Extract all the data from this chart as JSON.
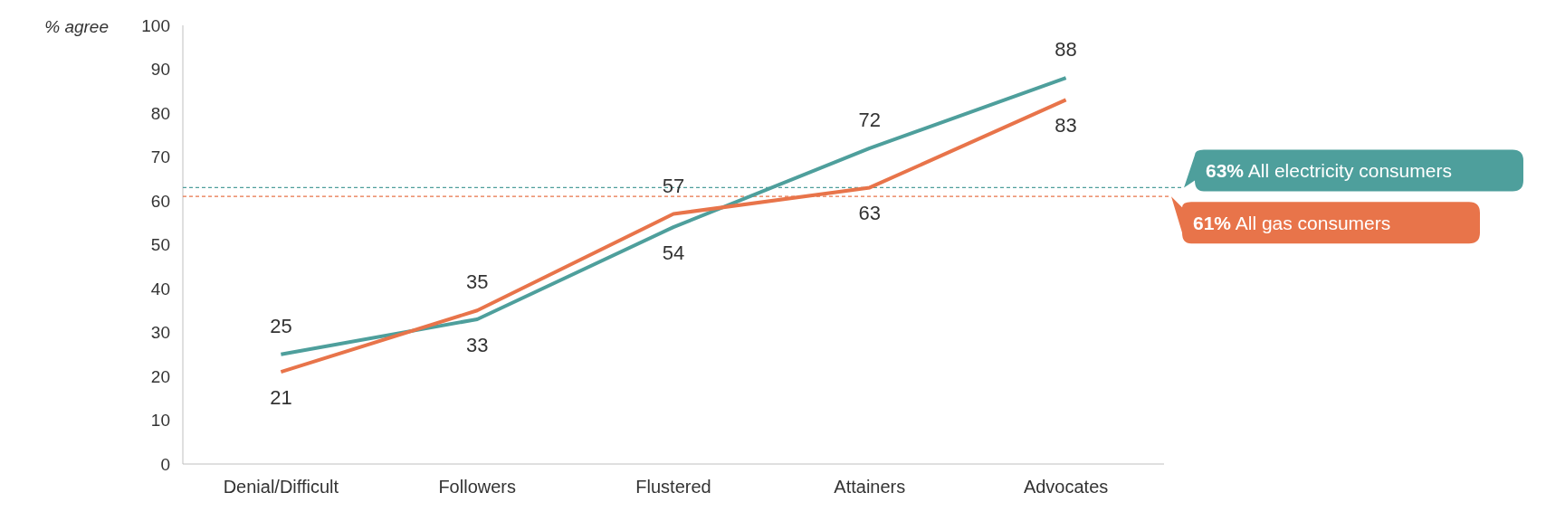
{
  "chart_data": {
    "type": "line",
    "ylabel": "% agree",
    "categories": [
      "Denial/Difficult",
      "Followers",
      "Flustered",
      "Attainers",
      "Advocates"
    ],
    "series": [
      {
        "color": "#4e9f9c",
        "values": [
          25,
          33,
          54,
          72,
          88
        ]
      },
      {
        "color": "#e8744a",
        "values": [
          21,
          35,
          57,
          63,
          83
        ]
      }
    ],
    "ylim": [
      0,
      100
    ],
    "yticks": [
      0,
      10,
      20,
      30,
      40,
      50,
      60,
      70,
      80,
      90,
      100
    ],
    "data_labels": true,
    "grid": false,
    "marker": "none",
    "line_style": "solid",
    "ref_lines": [
      {
        "axis": "y",
        "value": 63,
        "label": "63% All electricity consumers",
        "color": "#4e9f9c",
        "line_style": "dashed"
      },
      {
        "axis": "y",
        "value": 61,
        "label": "61% All gas consumers",
        "color": "#e8744a",
        "line_style": "dashed"
      }
    ]
  }
}
